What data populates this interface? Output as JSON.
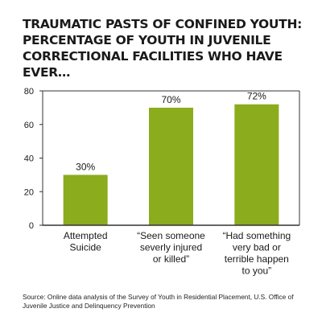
{
  "title_lines": [
    "TRAUMATIC PASTS OF CONFINED YOUTH:",
    "PERCENTAGE OF YOUTH IN JUVENILE",
    "CORRECTIONAL FACILITIES WHO HAVE EVER…"
  ],
  "source": "Source:  Online data analysis of the Survey of Youth in Residential Placement, U.S. Office of Juvenile Justice and Delinquency Prevention",
  "colors": {
    "bar": "#8bac1c",
    "axis": "#333333",
    "text": "#1a1a1a"
  },
  "chart_data": {
    "type": "bar",
    "title": "TRAUMATIC PASTS OF CONFINED YOUTH: PERCENTAGE OF YOUTH IN JUVENILE CORRECTIONAL FACILITIES WHO HAVE EVER…",
    "categories": [
      "Attempted Suicide",
      "“Seen someone severly injured or killed”",
      "“Had something very bad or terrible happen to you”"
    ],
    "category_lines": [
      [
        "Attempted",
        "Suicide"
      ],
      [
        "“Seen someone",
        "severly injured",
        "or killed”"
      ],
      [
        "“Had something",
        "very bad or",
        "terrible happen",
        "to you”"
      ]
    ],
    "values": [
      30,
      70,
      72
    ],
    "data_labels": [
      "30%",
      "70%",
      "72%"
    ],
    "ylim": [
      0,
      80
    ],
    "yticks": [
      0,
      20,
      40,
      60,
      80
    ],
    "xlabel": "",
    "ylabel": "",
    "grid": false,
    "legend": "none"
  }
}
